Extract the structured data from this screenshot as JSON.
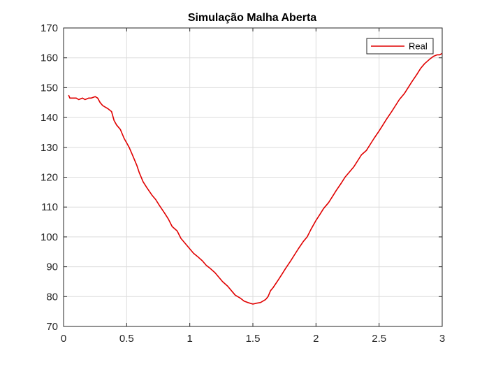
{
  "chart_data": {
    "type": "line",
    "title": "Simulação Malha Aberta",
    "xlabel": "",
    "ylabel": "",
    "xlim": [
      0,
      3
    ],
    "ylim": [
      70,
      170
    ],
    "xticks": [
      "0",
      "0.5",
      "1",
      "1.5",
      "2",
      "2.5",
      "3"
    ],
    "yticks": [
      "70",
      "80",
      "90",
      "100",
      "110",
      "120",
      "130",
      "140",
      "150",
      "160",
      "170"
    ],
    "grid": true,
    "legend": {
      "placement": "top-right",
      "entries": [
        "Real"
      ]
    },
    "series": [
      {
        "name": "Real",
        "color": "#e00000",
        "x": [
          0.04,
          0.05,
          0.07,
          0.1,
          0.12,
          0.15,
          0.17,
          0.2,
          0.22,
          0.25,
          0.27,
          0.29,
          0.31,
          0.33,
          0.35,
          0.38,
          0.4,
          0.42,
          0.45,
          0.48,
          0.5,
          0.52,
          0.55,
          0.58,
          0.6,
          0.63,
          0.66,
          0.7,
          0.73,
          0.76,
          0.8,
          0.83,
          0.86,
          0.9,
          0.93,
          0.96,
          1.0,
          1.03,
          1.06,
          1.1,
          1.13,
          1.16,
          1.2,
          1.23,
          1.26,
          1.3,
          1.33,
          1.36,
          1.4,
          1.43,
          1.46,
          1.5,
          1.53,
          1.56,
          1.58,
          1.6,
          1.62,
          1.64,
          1.66,
          1.7,
          1.73,
          1.76,
          1.8,
          1.83,
          1.86,
          1.9,
          1.93,
          1.96,
          2.0,
          2.03,
          2.06,
          2.1,
          2.13,
          2.16,
          2.2,
          2.23,
          2.26,
          2.3,
          2.33,
          2.36,
          2.4,
          2.43,
          2.46,
          2.5,
          2.53,
          2.56,
          2.6,
          2.63,
          2.66,
          2.7,
          2.73,
          2.76,
          2.8,
          2.83,
          2.86,
          2.9,
          2.93,
          2.96,
          2.98,
          3.0
        ],
        "y": [
          147.5,
          146.5,
          146.5,
          146.5,
          146.0,
          146.5,
          146.0,
          146.5,
          146.5,
          147.0,
          146.5,
          145.0,
          144.0,
          143.5,
          143.0,
          142.0,
          139.0,
          137.5,
          136.0,
          133.0,
          131.5,
          130.0,
          127.0,
          124.0,
          121.5,
          118.5,
          116.5,
          114.0,
          112.5,
          110.5,
          108.0,
          106.0,
          103.5,
          102.0,
          99.5,
          98.0,
          96.0,
          94.5,
          93.5,
          92.0,
          90.5,
          89.5,
          88.0,
          86.5,
          85.0,
          83.5,
          82.0,
          80.5,
          79.5,
          78.5,
          78.0,
          77.5,
          77.8,
          78.0,
          78.5,
          79.0,
          80.0,
          82.0,
          83.0,
          85.5,
          87.5,
          89.5,
          92.0,
          94.0,
          96.0,
          98.5,
          100.0,
          102.5,
          105.5,
          107.5,
          109.5,
          111.5,
          113.5,
          115.5,
          118.0,
          120.0,
          121.5,
          123.5,
          125.5,
          127.5,
          129.0,
          131.0,
          133.0,
          135.5,
          137.5,
          139.5,
          142.0,
          144.0,
          146.0,
          148.0,
          150.0,
          152.0,
          154.5,
          156.5,
          158.0,
          159.5,
          160.5,
          161.0,
          161.0,
          161.5
        ]
      }
    ]
  }
}
